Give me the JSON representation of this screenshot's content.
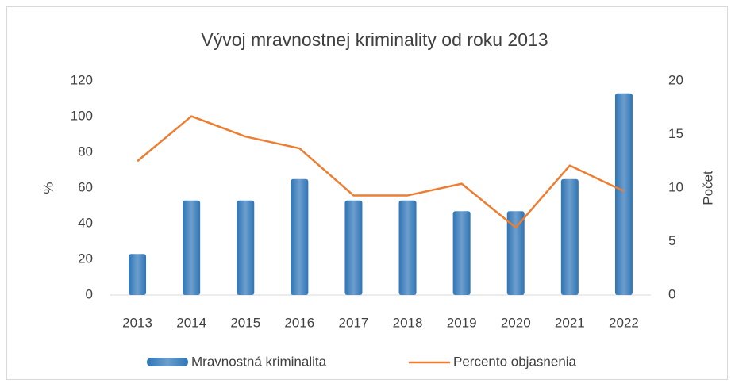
{
  "chart_data": {
    "type": "bar-line",
    "title": "Vývoj mravnostnej kriminality od roku 2013",
    "ylabel": "%",
    "y2label": "Počet",
    "categories": [
      "2013",
      "2014",
      "2015",
      "2016",
      "2017",
      "2018",
      "2019",
      "2020",
      "2021",
      "2022"
    ],
    "series": [
      {
        "name": "Mravnostná kriminalita",
        "type": "bar",
        "color": "#2e75b6",
        "values": [
          23,
          53,
          53,
          65,
          53,
          53,
          47,
          47,
          65,
          113
        ]
      },
      {
        "name": "Percento objasnenia",
        "type": "line",
        "axis": "y2",
        "color": "#ed7d31",
        "values": [
          12.5,
          16.7,
          14.8,
          13.7,
          9.3,
          9.3,
          10.4,
          6.3,
          12.1,
          9.7
        ]
      }
    ],
    "ylim": [
      0,
      120
    ],
    "yticks": [
      0,
      20,
      40,
      60,
      80,
      100,
      120
    ],
    "y2lim": [
      0,
      20
    ],
    "y2ticks": [
      0,
      5,
      10,
      15,
      20
    ],
    "legend": "bottom",
    "grid": false
  }
}
